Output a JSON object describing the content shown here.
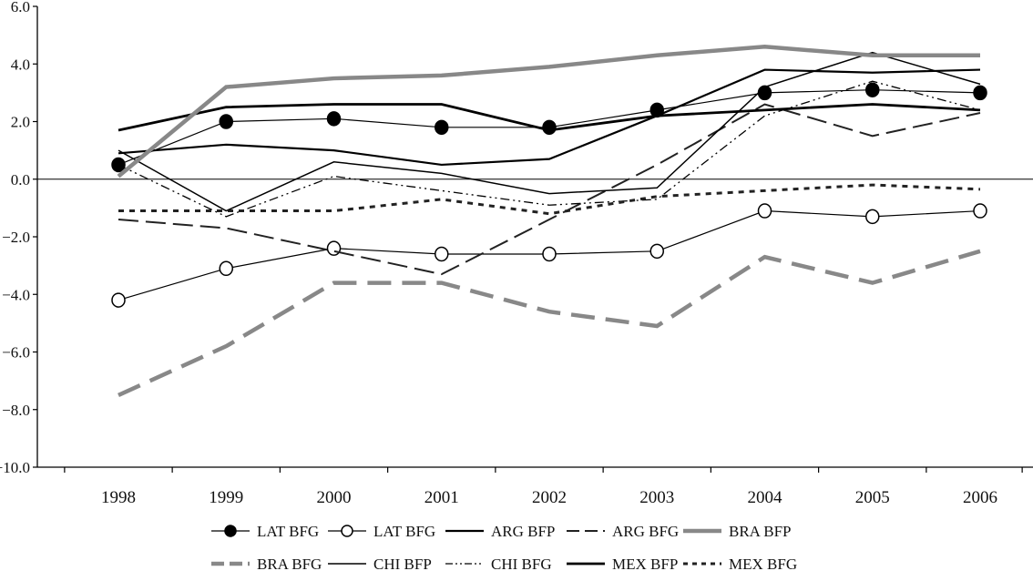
{
  "chart_data": {
    "type": "line",
    "title": "",
    "xlabel": "",
    "ylabel": "",
    "x": [
      "1998",
      "1999",
      "2000",
      "2001",
      "2002",
      "2003",
      "2004",
      "2005",
      "2006"
    ],
    "ylim": [
      -10,
      6
    ],
    "yticks": [
      6,
      4,
      2,
      0,
      -2,
      -4,
      -6,
      -8,
      -10
    ],
    "ytick_labels": [
      "6.0",
      "4.0",
      "2.0",
      "0.0",
      "−2.0",
      "−4.0",
      "−6.0",
      "−8.0",
      "−10.0"
    ],
    "grid": false,
    "legend_position": "bottom",
    "series": [
      {
        "name": "LAT BFG",
        "style": "filled-marker",
        "color": "#000000",
        "values": [
          0.5,
          2.0,
          2.1,
          1.8,
          1.8,
          2.4,
          3.0,
          3.1,
          3.0
        ]
      },
      {
        "name": "LAT BFG",
        "style": "open-marker",
        "color": "#000000",
        "values": [
          -4.2,
          -3.1,
          -2.4,
          -2.6,
          -2.6,
          -2.5,
          -1.1,
          -1.3,
          -1.1
        ]
      },
      {
        "name": "ARG BFP",
        "style": "solid-medium",
        "color": "#000000",
        "values": [
          0.9,
          1.2,
          1.0,
          0.5,
          0.7,
          2.2,
          3.8,
          3.7,
          3.8
        ]
      },
      {
        "name": "ARG BFG",
        "style": "long-dash",
        "color": "#222222",
        "values": [
          -1.4,
          -1.7,
          -2.5,
          -3.3,
          -1.4,
          0.5,
          2.6,
          1.5,
          2.3
        ]
      },
      {
        "name": "BRA BFP",
        "style": "solid-thick",
        "color": "#888888",
        "values": [
          0.1,
          3.2,
          3.5,
          3.6,
          3.9,
          4.3,
          4.6,
          4.3,
          4.3
        ]
      },
      {
        "name": "BRA BFG",
        "style": "thick-dash",
        "color": "#888888",
        "values": [
          -7.5,
          -5.8,
          -3.6,
          -3.6,
          -4.6,
          -5.1,
          -2.7,
          -3.6,
          -2.5
        ]
      },
      {
        "name": "CHI BFP",
        "style": "solid-thin",
        "color": "#000000",
        "values": [
          1.0,
          -1.1,
          0.6,
          0.2,
          -0.5,
          -0.3,
          3.2,
          4.4,
          3.3
        ]
      },
      {
        "name": "CHI BFG",
        "style": "dash-dot-dot",
        "color": "#000000",
        "values": [
          0.5,
          -1.3,
          0.1,
          -0.4,
          -0.9,
          -0.7,
          2.2,
          3.4,
          2.4
        ]
      },
      {
        "name": "MEX BFP",
        "style": "solid-bold",
        "color": "#000000",
        "values": [
          1.7,
          2.5,
          2.6,
          2.6,
          1.7,
          2.2,
          2.4,
          2.6,
          2.4
        ]
      },
      {
        "name": "MEX BFG",
        "style": "dotted",
        "color": "#222222",
        "values": [
          -1.1,
          -1.1,
          -1.1,
          -0.7,
          -1.2,
          -0.6,
          -0.4,
          -0.2,
          -0.35
        ]
      }
    ]
  }
}
